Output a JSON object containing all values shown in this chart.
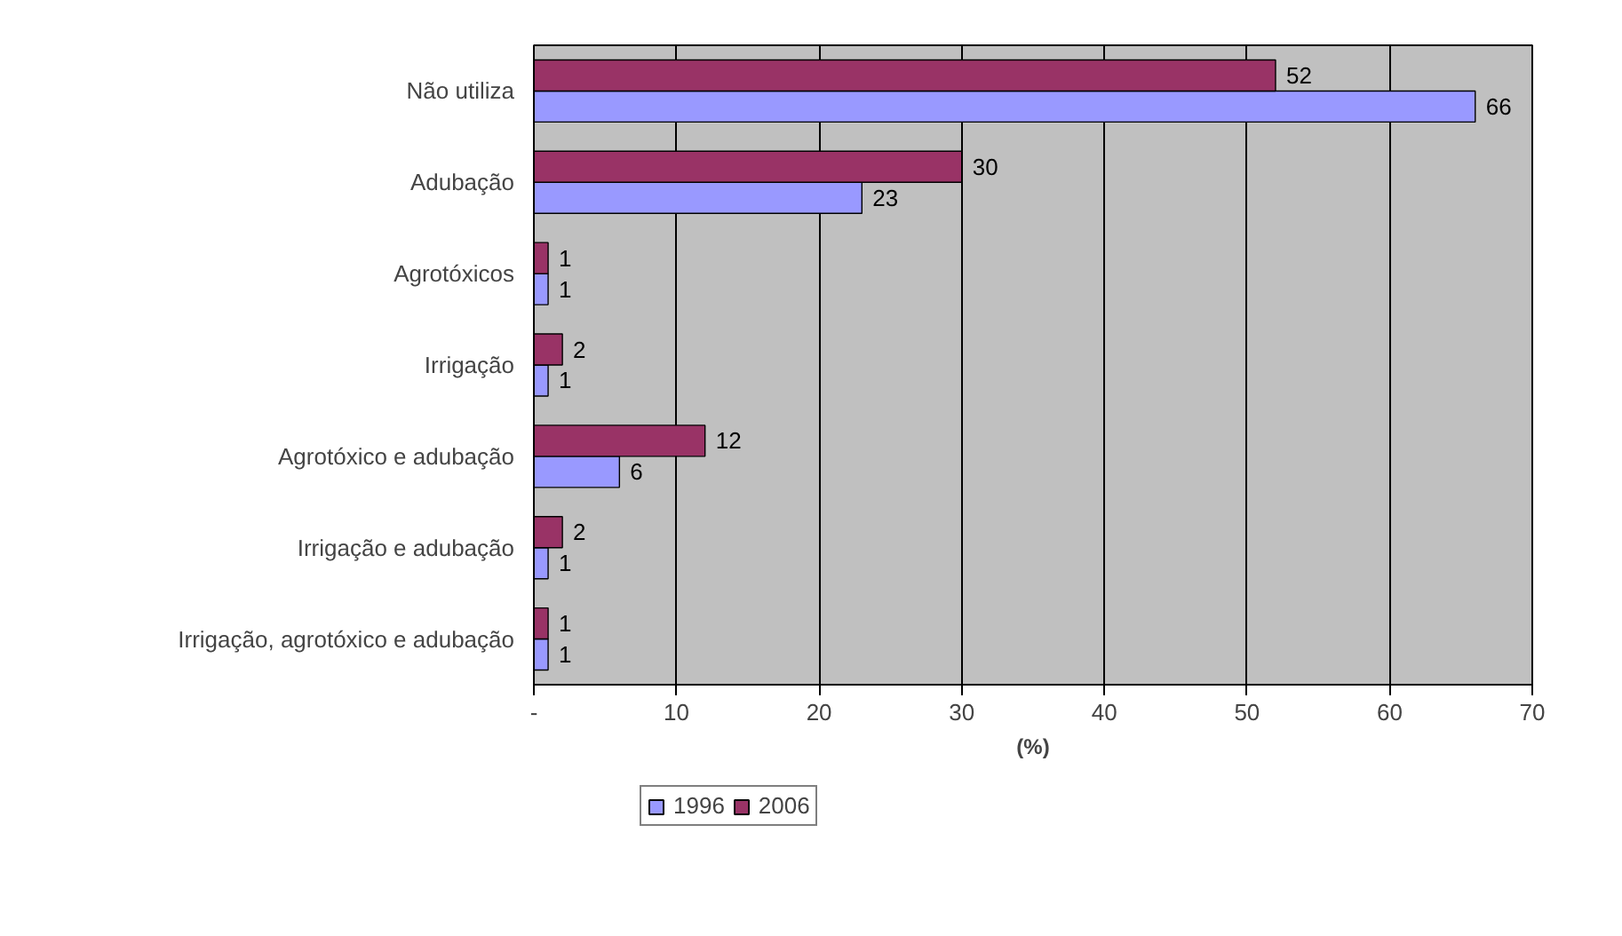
{
  "chart_data": {
    "type": "bar",
    "orientation": "horizontal",
    "xlabel": "(%)",
    "categories": [
      "Não utiliza",
      "Adubação",
      "Agrotóxicos",
      "Irrigação",
      "Agrotóxico e adubação",
      "Irrigação e adubação",
      "Irrigação, agrotóxico e adubação"
    ],
    "series": [
      {
        "name": "1996",
        "color": "#9999ff",
        "values": [
          66,
          23,
          1,
          1,
          6,
          1,
          1
        ]
      },
      {
        "name": "2006",
        "color": "#993366",
        "values": [
          52,
          30,
          1,
          2,
          12,
          2,
          1
        ]
      }
    ],
    "xlim": [
      0,
      70
    ],
    "xticks": [
      {
        "value": 0,
        "label": "-"
      },
      10,
      20,
      30,
      40,
      50,
      60,
      70
    ],
    "grid": "x",
    "legend": "bottom",
    "data_labels": true
  }
}
